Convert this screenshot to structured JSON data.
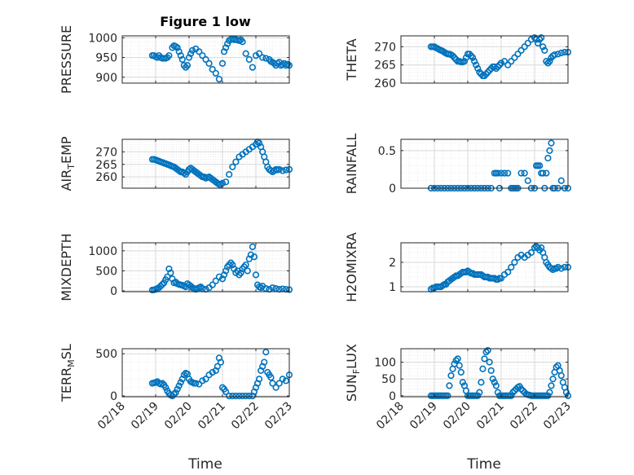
{
  "figure_title": "Figure 1 low",
  "colors": {
    "marker": "#0072BD",
    "axis": "#262626",
    "grid": "#d9d9d9",
    "minor_grid": "#ececec"
  },
  "x_axis": {
    "label": "Time",
    "ticks": [
      "02/18",
      "02/19",
      "02/20",
      "02/21",
      "02/22",
      "02/23"
    ],
    "range": [
      "02/18",
      "02/23"
    ]
  },
  "chart_data": [
    {
      "type": "scatter",
      "title": "Figure 1 low",
      "ylabel": "PRESSURE",
      "ylabel_sub": "",
      "ylim": [
        885,
        1005
      ],
      "yticks": [
        900,
        950,
        1000
      ],
      "x": [
        0.9,
        0.95,
        1.0,
        1.05,
        1.1,
        1.15,
        1.2,
        1.25,
        1.3,
        1.35,
        1.4,
        1.5,
        1.55,
        1.6,
        1.65,
        1.7,
        1.75,
        1.8,
        1.85,
        1.9,
        1.95,
        2.0,
        2.05,
        2.1,
        2.2,
        2.3,
        2.4,
        2.5,
        2.6,
        2.7,
        2.8,
        2.9,
        3.0,
        3.05,
        3.1,
        3.15,
        3.2,
        3.25,
        3.3,
        3.35,
        3.4,
        3.45,
        3.5,
        3.55,
        3.6,
        3.7,
        3.8,
        3.9,
        4.0,
        4.1,
        4.2,
        4.3,
        4.4,
        4.45,
        4.5,
        4.55,
        4.6,
        4.65,
        4.7,
        4.75,
        4.8,
        4.85,
        4.9,
        4.95,
        5.0
      ],
      "y": [
        955,
        955,
        952,
        950,
        955,
        950,
        948,
        948,
        948,
        950,
        955,
        975,
        980,
        978,
        975,
        965,
        955,
        945,
        930,
        925,
        930,
        950,
        960,
        968,
        972,
        965,
        955,
        945,
        935,
        920,
        910,
        895,
        935,
        965,
        975,
        985,
        993,
        996,
        997,
        995,
        996,
        994,
        993,
        995,
        990,
        960,
        945,
        925,
        955,
        960,
        950,
        948,
        945,
        940,
        938,
        935,
        930,
        935,
        938,
        930,
        932,
        935,
        930,
        933,
        930
      ]
    },
    {
      "type": "scatter",
      "ylabel": "THETA",
      "ylabel_sub": "",
      "ylim": [
        260,
        273
      ],
      "yticks": [
        260,
        265,
        270
      ],
      "x": [
        0.9,
        0.95,
        1.0,
        1.05,
        1.1,
        1.15,
        1.2,
        1.25,
        1.3,
        1.35,
        1.4,
        1.45,
        1.5,
        1.55,
        1.6,
        1.65,
        1.7,
        1.75,
        1.8,
        1.85,
        1.9,
        1.95,
        2.0,
        2.05,
        2.1,
        2.15,
        2.2,
        2.25,
        2.3,
        2.35,
        2.4,
        2.45,
        2.5,
        2.55,
        2.6,
        2.65,
        2.7,
        2.75,
        2.8,
        2.85,
        2.9,
        2.95,
        3.0,
        3.1,
        3.2,
        3.3,
        3.4,
        3.5,
        3.6,
        3.7,
        3.8,
        3.9,
        4.0,
        4.05,
        4.1,
        4.15,
        4.2,
        4.25,
        4.3,
        4.35,
        4.4,
        4.45,
        4.5,
        4.55,
        4.6,
        4.7,
        4.8,
        4.9,
        5.0
      ],
      "y": [
        270,
        270,
        270,
        269.7,
        269.5,
        269.2,
        269,
        268.8,
        268.5,
        268.2,
        268,
        268,
        267.8,
        267.5,
        267,
        266.5,
        266,
        266,
        265.8,
        265.8,
        266,
        267,
        268,
        268,
        267.5,
        267,
        266,
        265,
        264,
        263,
        262.5,
        262,
        262,
        262.5,
        263,
        263.5,
        264,
        264.5,
        264.5,
        264,
        264.5,
        265,
        265.5,
        266,
        265,
        266,
        267,
        268,
        269,
        270,
        271,
        272,
        272.5,
        272,
        271,
        272,
        272.5,
        270,
        269,
        266,
        265.5,
        266,
        267,
        267.5,
        267.8,
        268,
        268.3,
        268.5,
        268.5
      ]
    },
    {
      "type": "scatter",
      "ylabel": "AIR",
      "ylabel_sub": "T",
      "ylabel_rest": "EMP",
      "ylim": [
        255.5,
        275
      ],
      "yticks": [
        260,
        265,
        270
      ],
      "x": [
        0.9,
        0.95,
        1.0,
        1.05,
        1.1,
        1.15,
        1.2,
        1.25,
        1.3,
        1.35,
        1.4,
        1.45,
        1.5,
        1.55,
        1.6,
        1.65,
        1.7,
        1.75,
        1.8,
        1.85,
        1.9,
        1.95,
        2.0,
        2.05,
        2.1,
        2.15,
        2.2,
        2.25,
        2.3,
        2.35,
        2.4,
        2.45,
        2.5,
        2.55,
        2.6,
        2.65,
        2.7,
        2.75,
        2.8,
        2.85,
        2.9,
        2.95,
        3.0,
        3.1,
        3.2,
        3.3,
        3.4,
        3.5,
        3.6,
        3.7,
        3.8,
        3.9,
        4.0,
        4.05,
        4.1,
        4.15,
        4.2,
        4.25,
        4.3,
        4.35,
        4.4,
        4.45,
        4.5,
        4.55,
        4.6,
        4.65,
        4.7,
        4.8,
        4.9,
        5.0
      ],
      "y": [
        267,
        267,
        266.8,
        266.5,
        266.3,
        266,
        265.8,
        265.5,
        265.3,
        265,
        264.8,
        264.5,
        264.2,
        264,
        263.5,
        263,
        262.5,
        262,
        262,
        261.5,
        261,
        262,
        263,
        263.5,
        263,
        262.5,
        262,
        261.5,
        261,
        260.5,
        260,
        260,
        259.5,
        259.8,
        260,
        259.5,
        259,
        258.5,
        258,
        257.5,
        257,
        257,
        257.5,
        258,
        261,
        264,
        266,
        268,
        269,
        270,
        271,
        272,
        273,
        274,
        273.5,
        272,
        270,
        268,
        266,
        264,
        263,
        262.5,
        262,
        262.5,
        263,
        262.8,
        263,
        262.5,
        262.8,
        263
      ]
    },
    {
      "type": "scatter",
      "ylabel": "RAINFALL",
      "ylabel_sub": "",
      "ylim": [
        0,
        0.65
      ],
      "yticks": [
        0,
        0.5
      ],
      "x": [
        0.9,
        1.0,
        1.1,
        1.2,
        1.3,
        1.4,
        1.5,
        1.6,
        1.7,
        1.8,
        1.9,
        2.0,
        2.1,
        2.2,
        2.3,
        2.4,
        2.5,
        2.6,
        2.7,
        2.8,
        2.85,
        2.9,
        2.95,
        3.0,
        3.1,
        3.2,
        3.3,
        3.35,
        3.4,
        3.45,
        3.5,
        3.6,
        3.7,
        3.8,
        3.9,
        4.0,
        4.05,
        4.1,
        4.15,
        4.2,
        4.25,
        4.3,
        4.35,
        4.4,
        4.45,
        4.5,
        4.55,
        4.6,
        4.7,
        4.8,
        4.9,
        5.0
      ],
      "y": [
        0,
        0,
        0,
        0,
        0,
        0,
        0,
        0,
        0,
        0,
        0,
        0,
        0,
        0,
        0,
        0,
        0,
        0,
        0,
        0.2,
        0.2,
        0.2,
        0,
        0.2,
        0.2,
        0.2,
        0,
        0,
        0,
        0,
        0,
        0.2,
        0.2,
        0.1,
        0,
        0,
        0.3,
        0.3,
        0.3,
        0.2,
        0.2,
        0,
        0.2,
        0.4,
        0.5,
        0.6,
        0,
        0,
        0,
        0.1,
        0,
        0
      ]
    },
    {
      "type": "scatter",
      "ylabel": "MIXDEPTH",
      "ylabel_sub": "",
      "ylim": [
        -20,
        1200
      ],
      "yticks": [
        0,
        500,
        1000
      ],
      "x": [
        0.9,
        0.95,
        1.0,
        1.05,
        1.1,
        1.15,
        1.2,
        1.25,
        1.3,
        1.35,
        1.4,
        1.45,
        1.5,
        1.55,
        1.6,
        1.65,
        1.7,
        1.75,
        1.8,
        1.85,
        1.9,
        1.95,
        2.0,
        2.05,
        2.1,
        2.15,
        2.2,
        2.25,
        2.3,
        2.35,
        2.4,
        2.5,
        2.6,
        2.7,
        2.8,
        2.9,
        3.0,
        3.05,
        3.1,
        3.15,
        3.2,
        3.25,
        3.3,
        3.35,
        3.4,
        3.45,
        3.5,
        3.55,
        3.6,
        3.65,
        3.7,
        3.75,
        3.8,
        3.85,
        3.9,
        3.95,
        4.0,
        4.05,
        4.1,
        4.15,
        4.2,
        4.3,
        4.4,
        4.5,
        4.6,
        4.7,
        4.8,
        4.9,
        5.0
      ],
      "y": [
        20,
        25,
        40,
        60,
        80,
        120,
        160,
        200,
        280,
        350,
        550,
        450,
        300,
        200,
        220,
        180,
        160,
        150,
        140,
        120,
        100,
        180,
        150,
        120,
        80,
        60,
        40,
        60,
        80,
        100,
        60,
        40,
        80,
        150,
        250,
        350,
        300,
        400,
        500,
        600,
        650,
        700,
        650,
        550,
        450,
        500,
        400,
        450,
        550,
        600,
        650,
        500,
        800,
        900,
        1100,
        850,
        400,
        150,
        100,
        80,
        120,
        60,
        40,
        80,
        60,
        40,
        50,
        40,
        30
      ]
    },
    {
      "type": "scatter",
      "ylabel": "H2OMIXRA",
      "ylabel_sub": "",
      "ylim": [
        0.8,
        2.8
      ],
      "yticks": [
        1,
        2
      ],
      "x": [
        0.9,
        0.95,
        1.0,
        1.05,
        1.1,
        1.15,
        1.2,
        1.25,
        1.3,
        1.35,
        1.4,
        1.45,
        1.5,
        1.55,
        1.6,
        1.65,
        1.7,
        1.75,
        1.8,
        1.85,
        1.9,
        1.95,
        2.0,
        2.05,
        2.1,
        2.15,
        2.2,
        2.25,
        2.3,
        2.35,
        2.4,
        2.45,
        2.5,
        2.55,
        2.6,
        2.65,
        2.7,
        2.75,
        2.8,
        2.85,
        2.9,
        2.95,
        3.0,
        3.1,
        3.2,
        3.3,
        3.4,
        3.5,
        3.6,
        3.7,
        3.8,
        3.9,
        4.0,
        4.05,
        4.1,
        4.15,
        4.2,
        4.25,
        4.3,
        4.35,
        4.4,
        4.45,
        4.5,
        4.55,
        4.6,
        4.65,
        4.7,
        4.8,
        4.9,
        5.0
      ],
      "y": [
        0.9,
        0.95,
        0.95,
        1.0,
        1.0,
        1.0,
        1.0,
        1.05,
        1.1,
        1.1,
        1.2,
        1.25,
        1.3,
        1.35,
        1.4,
        1.45,
        1.45,
        1.5,
        1.55,
        1.6,
        1.6,
        1.6,
        1.65,
        1.6,
        1.55,
        1.55,
        1.5,
        1.5,
        1.5,
        1.5,
        1.5,
        1.45,
        1.4,
        1.4,
        1.4,
        1.35,
        1.35,
        1.35,
        1.35,
        1.3,
        1.3,
        1.35,
        1.35,
        1.5,
        1.6,
        1.8,
        2.0,
        2.2,
        2.3,
        2.2,
        2.3,
        2.4,
        2.6,
        2.65,
        2.6,
        2.5,
        2.6,
        2.4,
        2.2,
        2.0,
        1.9,
        1.8,
        1.75,
        1.7,
        1.75,
        1.75,
        1.8,
        1.75,
        1.8,
        1.8
      ]
    },
    {
      "type": "scatter",
      "ylabel": "TERR",
      "ylabel_sub": "M",
      "ylabel_rest": "SL",
      "ylim": [
        -10,
        560
      ],
      "yticks": [
        0,
        500
      ],
      "x": [
        0.9,
        0.95,
        1.0,
        1.05,
        1.1,
        1.15,
        1.2,
        1.25,
        1.3,
        1.35,
        1.4,
        1.45,
        1.5,
        1.55,
        1.6,
        1.65,
        1.7,
        1.75,
        1.8,
        1.85,
        1.9,
        1.95,
        2.0,
        2.05,
        2.1,
        2.15,
        2.2,
        2.3,
        2.4,
        2.5,
        2.6,
        2.7,
        2.8,
        2.85,
        2.9,
        2.95,
        3.0,
        3.05,
        3.1,
        3.2,
        3.3,
        3.4,
        3.5,
        3.6,
        3.7,
        3.8,
        3.9,
        3.95,
        4.0,
        4.05,
        4.1,
        4.15,
        4.2,
        4.25,
        4.3,
        4.35,
        4.4,
        4.45,
        4.5,
        4.6,
        4.7,
        4.8,
        4.9,
        5.0
      ],
      "y": [
        150,
        155,
        160,
        170,
        150,
        140,
        150,
        130,
        100,
        60,
        30,
        10,
        0,
        20,
        40,
        80,
        120,
        160,
        200,
        250,
        270,
        260,
        200,
        170,
        160,
        150,
        150,
        140,
        180,
        200,
        250,
        280,
        300,
        350,
        450,
        400,
        100,
        80,
        50,
        0,
        0,
        0,
        0,
        0,
        0,
        0,
        0,
        50,
        100,
        150,
        200,
        300,
        350,
        400,
        520,
        280,
        250,
        220,
        150,
        100,
        150,
        200,
        180,
        250
      ]
    },
    {
      "type": "scatter",
      "ylabel": "SUN",
      "ylabel_sub": "F",
      "ylabel_rest": "LUX",
      "ylim": [
        -3,
        140
      ],
      "yticks": [
        0,
        50,
        100
      ],
      "x": [
        0.9,
        0.95,
        1.0,
        1.05,
        1.1,
        1.15,
        1.2,
        1.25,
        1.3,
        1.35,
        1.4,
        1.45,
        1.5,
        1.55,
        1.6,
        1.65,
        1.7,
        1.75,
        1.8,
        1.85,
        1.9,
        1.95,
        2.0,
        2.05,
        2.1,
        2.15,
        2.2,
        2.25,
        2.3,
        2.35,
        2.4,
        2.45,
        2.5,
        2.55,
        2.6,
        2.65,
        2.7,
        2.75,
        2.8,
        2.85,
        2.9,
        2.95,
        3.0,
        3.05,
        3.1,
        3.15,
        3.2,
        3.25,
        3.3,
        3.35,
        3.4,
        3.45,
        3.5,
        3.55,
        3.6,
        3.65,
        3.7,
        3.75,
        3.8,
        3.85,
        3.9,
        3.95,
        4.0,
        4.05,
        4.1,
        4.15,
        4.2,
        4.25,
        4.3,
        4.35,
        4.4,
        4.45,
        4.5,
        4.55,
        4.6,
        4.65,
        4.7,
        4.75,
        4.8,
        4.85,
        4.9,
        4.95,
        5.0
      ],
      "y": [
        0,
        0,
        0,
        0,
        0,
        0,
        0,
        0,
        0,
        0,
        0,
        30,
        60,
        80,
        95,
        105,
        110,
        90,
        70,
        40,
        30,
        15,
        0,
        0,
        0,
        0,
        0,
        0,
        0,
        10,
        40,
        80,
        110,
        130,
        135,
        100,
        75,
        50,
        40,
        30,
        10,
        0,
        0,
        0,
        0,
        0,
        0,
        0,
        0,
        10,
        15,
        20,
        25,
        28,
        20,
        15,
        10,
        5,
        3,
        2,
        0,
        0,
        0,
        0,
        0,
        0,
        0,
        0,
        0,
        0,
        0,
        10,
        30,
        50,
        70,
        85,
        90,
        75,
        60,
        40,
        25,
        10,
        0
      ]
    }
  ]
}
